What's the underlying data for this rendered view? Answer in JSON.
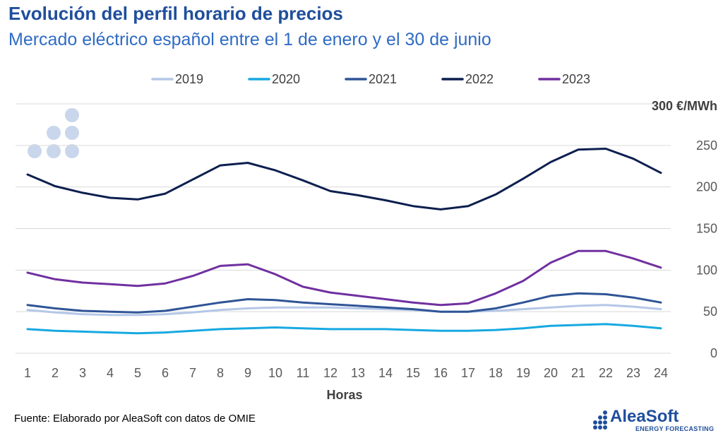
{
  "header": {
    "title": "Evolución del perfil horario de precios",
    "subtitle": "Mercado eléctrico español entre el 1 de enero y el 30 de junio"
  },
  "footer": {
    "source": "Fuente: Elaborado por AleaSoft con datos de OMIE"
  },
  "brand": {
    "name": "AleaSoft",
    "tagline": "ENERGY FORECASTING",
    "color": "#1f4e9c"
  },
  "chart_data": {
    "type": "line",
    "title": "Evolución del perfil horario de precios",
    "subtitle": "Mercado eléctrico español entre el 1 de enero y el 30 de junio",
    "xlabel": "Horas",
    "ylabel": "",
    "unit_label": "300 €/MWh",
    "ylim": [
      0,
      300
    ],
    "yticks": [
      "0",
      "50",
      "100",
      "150",
      "200",
      "250"
    ],
    "y_axis_position": "right",
    "grid": true,
    "legend_position": "top",
    "categories": [
      "1",
      "2",
      "3",
      "4",
      "5",
      "6",
      "7",
      "8",
      "9",
      "10",
      "11",
      "12",
      "13",
      "14",
      "15",
      "16",
      "17",
      "18",
      "19",
      "20",
      "21",
      "22",
      "23",
      "24"
    ],
    "series": [
      {
        "name": "2019",
        "color": "#b4c7e7",
        "values": [
          52,
          49,
          47,
          46,
          46,
          47,
          49,
          52,
          54,
          55,
          55,
          55,
          54,
          53,
          52,
          50,
          50,
          51,
          53,
          55,
          57,
          58,
          56,
          53
        ]
      },
      {
        "name": "2020",
        "color": "#17a9e1",
        "values": [
          29,
          27,
          26,
          25,
          24,
          25,
          27,
          29,
          30,
          31,
          30,
          29,
          29,
          29,
          28,
          27,
          27,
          28,
          30,
          33,
          34,
          35,
          33,
          30
        ]
      },
      {
        "name": "2021",
        "color": "#2f5496",
        "values": [
          58,
          54,
          51,
          50,
          49,
          51,
          56,
          61,
          65,
          64,
          61,
          59,
          57,
          55,
          53,
          50,
          50,
          54,
          61,
          69,
          72,
          71,
          67,
          61
        ]
      },
      {
        "name": "2022",
        "color": "#0d1f4f",
        "values": [
          215,
          201,
          193,
          187,
          185,
          192,
          209,
          226,
          229,
          220,
          208,
          195,
          190,
          184,
          177,
          173,
          177,
          191,
          210,
          230,
          245,
          246,
          234,
          217
        ]
      },
      {
        "name": "2023",
        "color": "#7030a0",
        "values": [
          97,
          89,
          85,
          83,
          81,
          84,
          93,
          105,
          107,
          95,
          80,
          73,
          69,
          65,
          61,
          58,
          60,
          72,
          87,
          109,
          123,
          123,
          114,
          103
        ]
      }
    ]
  }
}
